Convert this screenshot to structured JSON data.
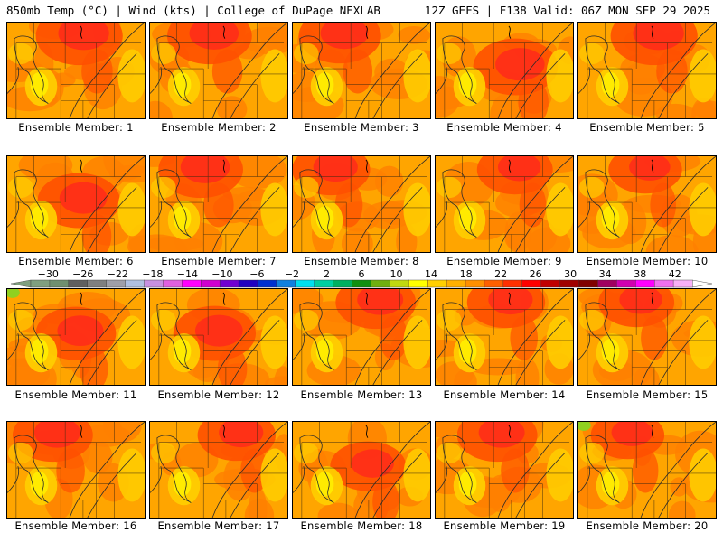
{
  "header": {
    "title_left": "850mb Temp (°C) | Wind (kts) | College of DuPage NEXLAB",
    "title_right": "12Z GEFS | F138 Valid: 06Z MON SEP 29 2025"
  },
  "label_prefix": "Ensemble Member: ",
  "members": [
    {
      "id": 1,
      "label": "Ensemble Member: 1",
      "warmth": 0.75,
      "hot_core": "north-central"
    },
    {
      "id": 2,
      "label": "Ensemble Member: 2",
      "warmth": 0.7,
      "hot_core": "north"
    },
    {
      "id": 3,
      "label": "Ensemble Member: 3",
      "warmth": 0.65,
      "hot_core": "north"
    },
    {
      "id": 4,
      "label": "Ensemble Member: 4",
      "warmth": 0.7,
      "hot_core": "central"
    },
    {
      "id": 5,
      "label": "Ensemble Member: 5",
      "warmth": 0.75,
      "hot_core": "north"
    },
    {
      "id": 6,
      "label": "Ensemble Member: 6",
      "warmth": 0.65,
      "hot_core": "central"
    },
    {
      "id": 7,
      "label": "Ensemble Member: 7",
      "warmth": 0.7,
      "hot_core": "north"
    },
    {
      "id": 8,
      "label": "Ensemble Member: 8",
      "warmth": 0.55,
      "hot_core": "north"
    },
    {
      "id": 9,
      "label": "Ensemble Member: 9",
      "warmth": 0.5,
      "hot_core": "north"
    },
    {
      "id": 10,
      "label": "Ensemble Member: 10",
      "warmth": 0.45,
      "hot_core": "north"
    },
    {
      "id": 11,
      "label": "Ensemble Member: 11",
      "warmth": 0.6,
      "hot_core": "central"
    },
    {
      "id": 12,
      "label": "Ensemble Member: 12",
      "warmth": 0.65,
      "hot_core": "central"
    },
    {
      "id": 13,
      "label": "Ensemble Member: 13",
      "warmth": 0.6,
      "hot_core": "north"
    },
    {
      "id": 14,
      "label": "Ensemble Member: 14",
      "warmth": 0.55,
      "hot_core": "north"
    },
    {
      "id": 15,
      "label": "Ensemble Member: 15",
      "warmth": 0.5,
      "hot_core": "north"
    },
    {
      "id": 16,
      "label": "Ensemble Member: 16",
      "warmth": 0.6,
      "hot_core": "north"
    },
    {
      "id": 17,
      "label": "Ensemble Member: 17",
      "warmth": 0.55,
      "hot_core": "north"
    },
    {
      "id": 18,
      "label": "Ensemble Member: 18",
      "warmth": 0.5,
      "hot_core": "central"
    },
    {
      "id": 19,
      "label": "Ensemble Member: 19",
      "warmth": 0.6,
      "hot_core": "north"
    },
    {
      "id": 20,
      "label": "Ensemble Member: 20",
      "warmth": 0.45,
      "hot_core": "north"
    }
  ],
  "colorbar": {
    "unit": "°C",
    "tick_labels": [
      "-30",
      "-26",
      "-22",
      "-18",
      "-14",
      "-10",
      "-6",
      "-2",
      "2",
      "6",
      "10",
      "14",
      "18",
      "22",
      "26",
      "30",
      "34",
      "38",
      "42"
    ],
    "min": -32,
    "max": 44,
    "step": 2,
    "colors": [
      "#7f9f7f",
      "#6f8f6f",
      "#5f5f5f",
      "#7f7f7f",
      "#9f9fa8",
      "#b0c0e0",
      "#c890e0",
      "#e060e0",
      "#ff00ff",
      "#d000d0",
      "#7000d0",
      "#2000c0",
      "#0030d0",
      "#1080e0",
      "#00e0f0",
      "#00d0a0",
      "#00b060",
      "#109010",
      "#70b010",
      "#c0d810",
      "#ffff00",
      "#ffd000",
      "#ffb000",
      "#ff9000",
      "#ff6000",
      "#ff3000",
      "#ff0000",
      "#c00000",
      "#a00000",
      "#800000",
      "#a00060",
      "#d000b0",
      "#ff00ff",
      "#f070f0",
      "#f8b0f8"
    ]
  },
  "palette": {
    "yellow": "#ffee00",
    "yellow_orange": "#ffcc00",
    "orange": "#ffa500",
    "dark_orange": "#ff8000",
    "red_orange": "#ff5000",
    "red": "#ff2a1a",
    "green": "#90d020"
  }
}
